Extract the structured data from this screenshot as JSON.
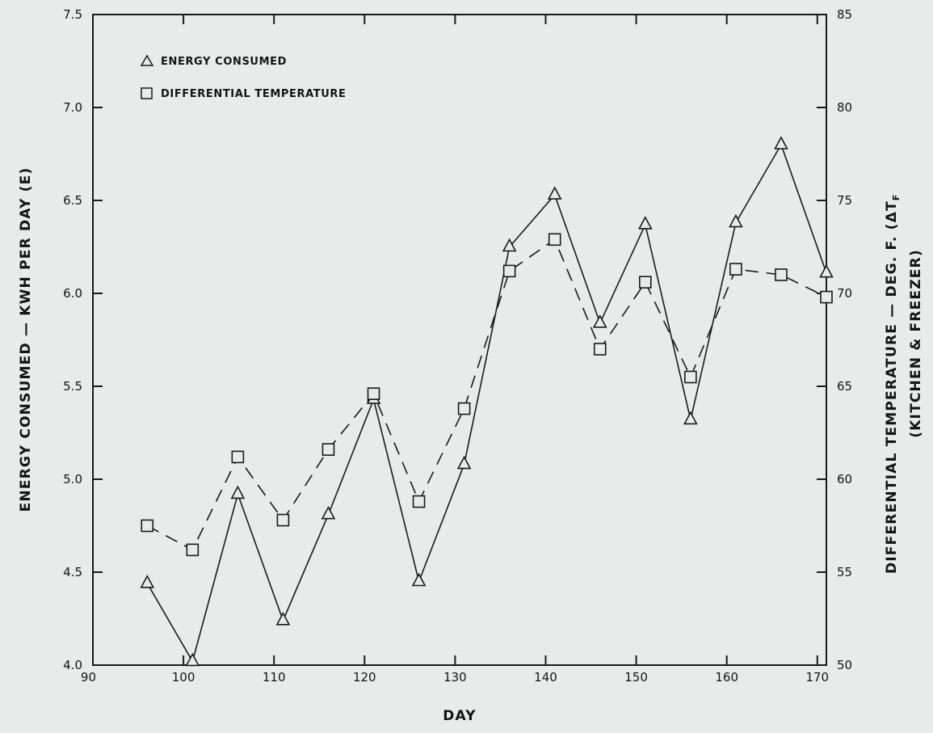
{
  "chart_data": {
    "type": "line",
    "x_axis": {
      "label": "DAY",
      "range": [
        90,
        171
      ],
      "ticks": [
        90,
        100,
        110,
        120,
        130,
        140,
        150,
        160,
        170
      ]
    },
    "y_left": {
      "label": "ENERGY CONSUMED — KWH PER DAY (E)",
      "range": [
        4.0,
        7.5
      ],
      "ticks": [
        "4.0",
        "4.5",
        "5.0",
        "5.5",
        "6.0",
        "6.5",
        "7.0",
        "7.5"
      ]
    },
    "y_right": {
      "label_line1": "DIFFERENTIAL TEMPERATURE — DEG. F. (ΔT",
      "label_sub": "F",
      "label_line2": "(KITCHEN & FREEZER)",
      "range": [
        50,
        85
      ],
      "ticks": [
        "50",
        "55",
        "60",
        "65",
        "70",
        "75",
        "80",
        "85"
      ]
    },
    "legend_position": "top-left",
    "grid": false,
    "series": [
      {
        "name": "ENERGY CONSUMED",
        "axis": "left",
        "marker": "triangle",
        "line_style": "solid",
        "x": [
          96,
          101,
          106,
          111,
          116,
          121,
          126,
          131,
          136,
          141,
          146,
          151,
          156,
          161,
          166,
          171
        ],
        "y": [
          4.44,
          4.02,
          4.92,
          4.24,
          4.81,
          5.43,
          4.45,
          5.08,
          6.25,
          6.53,
          5.84,
          6.37,
          5.32,
          6.38,
          6.8,
          6.11
        ]
      },
      {
        "name": "DIFFERENTIAL TEMPERATURE",
        "axis": "right",
        "marker": "square",
        "line_style": "dashed",
        "x": [
          96,
          101,
          106,
          111,
          116,
          121,
          126,
          131,
          136,
          141,
          146,
          151,
          156,
          161,
          166,
          171
        ],
        "y": [
          57.5,
          56.2,
          61.2,
          57.8,
          61.6,
          64.6,
          58.8,
          63.8,
          71.2,
          72.9,
          67.0,
          70.6,
          65.5,
          71.3,
          71.0,
          69.8
        ]
      }
    ]
  }
}
